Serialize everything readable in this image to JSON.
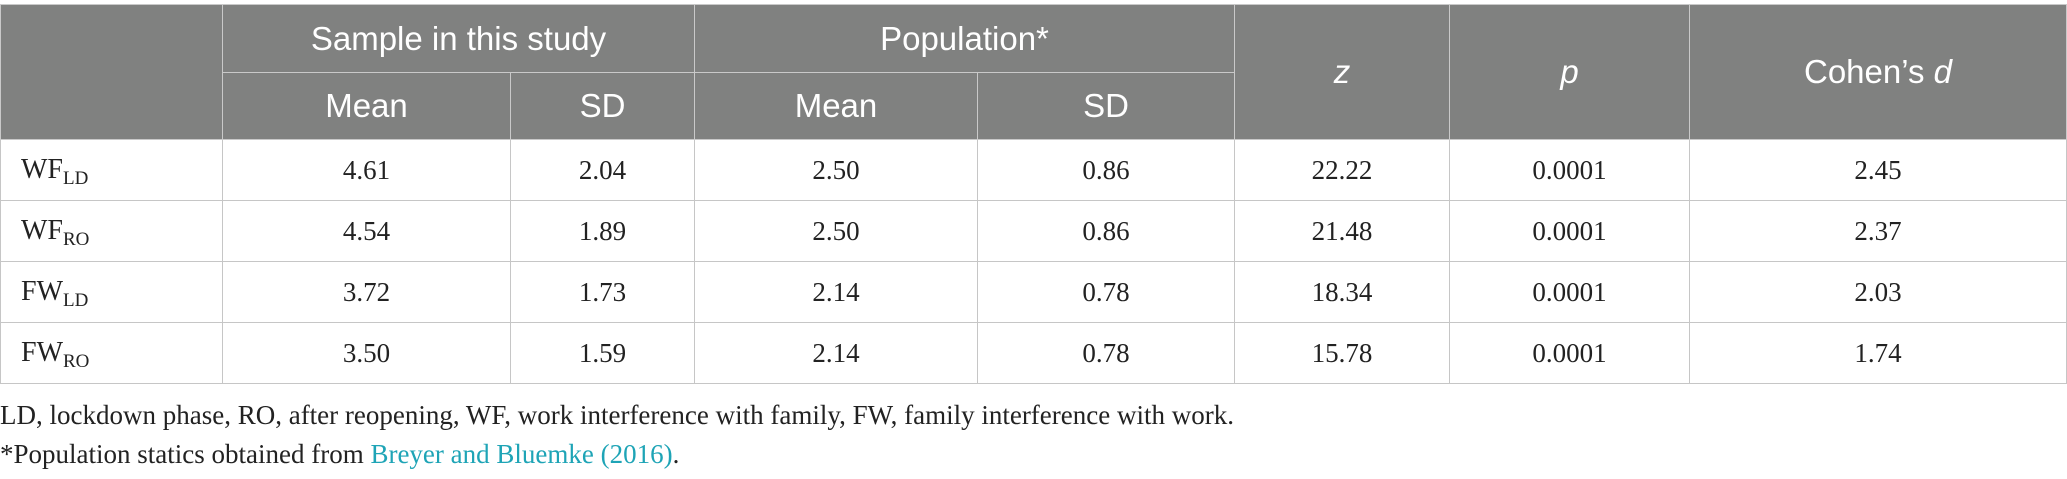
{
  "header": {
    "sample_group": "Sample in this study",
    "population_group": "Population*",
    "z": "z",
    "p": "p",
    "cohens_prefix": "Cohen’s ",
    "cohens_d": "d",
    "sample_mean": "Mean",
    "sample_sd": "SD",
    "pop_mean": "Mean",
    "pop_sd": "SD"
  },
  "rows": [
    {
      "base": "WF",
      "sub": "LD",
      "sample_mean": "4.61",
      "sample_sd": "2.04",
      "pop_mean": "2.50",
      "pop_sd": "0.86",
      "z": "22.22",
      "p": "0.0001",
      "d": "2.45"
    },
    {
      "base": "WF",
      "sub": "RO",
      "sample_mean": "4.54",
      "sample_sd": "1.89",
      "pop_mean": "2.50",
      "pop_sd": "0.86",
      "z": "21.48",
      "p": "0.0001",
      "d": "2.37"
    },
    {
      "base": "FW",
      "sub": "LD",
      "sample_mean": "3.72",
      "sample_sd": "1.73",
      "pop_mean": "2.14",
      "pop_sd": "0.78",
      "z": "18.34",
      "p": "0.0001",
      "d": "2.03"
    },
    {
      "base": "FW",
      "sub": "RO",
      "sample_mean": "3.50",
      "sample_sd": "1.59",
      "pop_mean": "2.14",
      "pop_sd": "0.78",
      "z": "15.78",
      "p": "0.0001",
      "d": "1.74"
    }
  ],
  "notes": {
    "abbreviations": "LD, lockdown phase, RO, after reopening, WF, work interference with family, FW, family interference with work.",
    "source_prefix": "*Population statics obtained from ",
    "source_link": "Breyer and Bluemke (2016)",
    "source_suffix": "."
  },
  "colors": {
    "header_bg": "#808180",
    "header_text": "#ffffff",
    "link": "#1ea4b6"
  }
}
